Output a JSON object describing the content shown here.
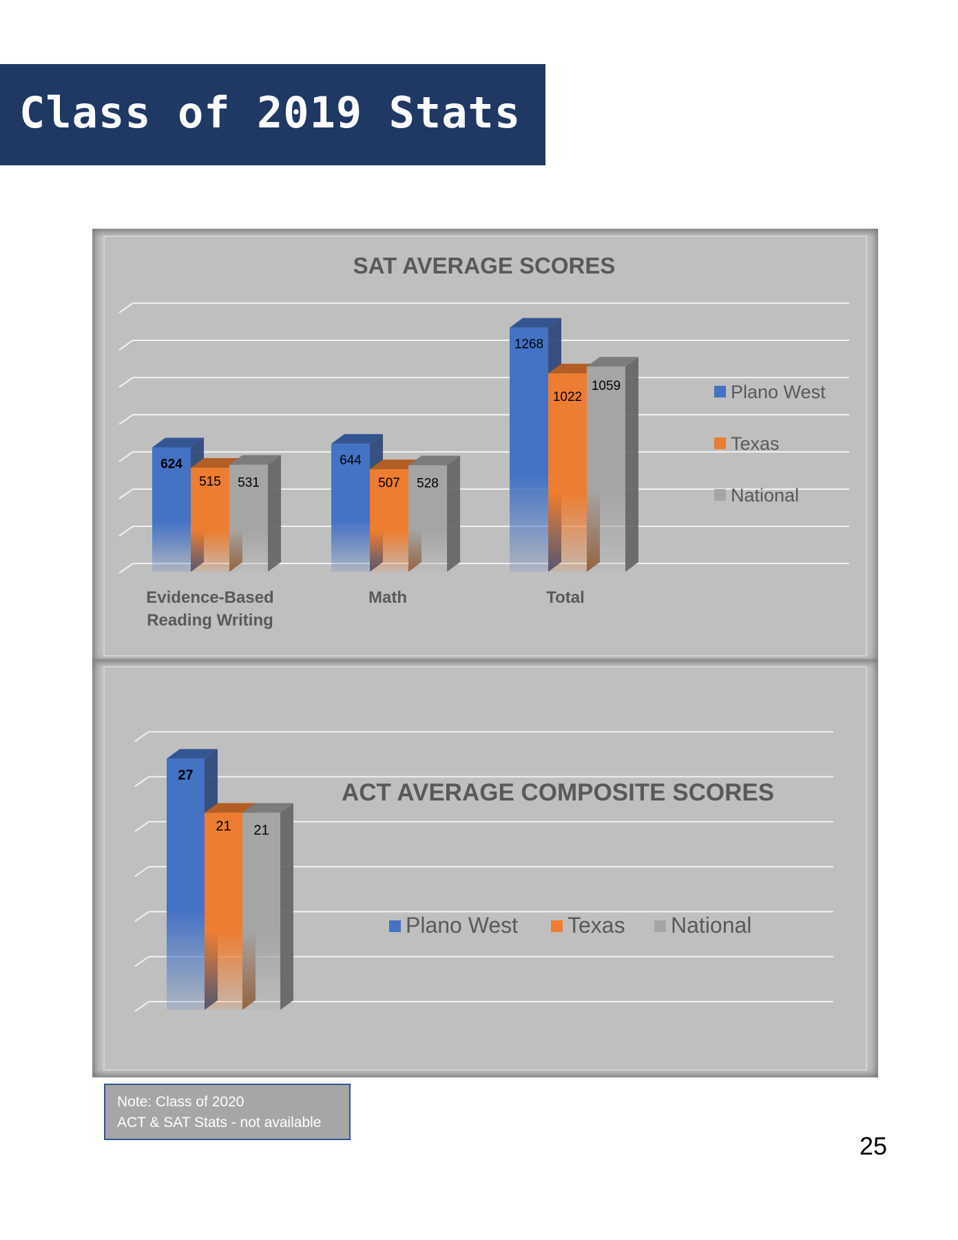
{
  "banner": {
    "title": "Class of 2019 Stats",
    "color": "#1f3864"
  },
  "chart_data": [
    {
      "type": "bar",
      "title": "SAT AVERAGE SCORES",
      "categories": [
        "Evidence-Based Reading Writing",
        "Math",
        "Total"
      ],
      "category_lines": [
        [
          "Evidence-Based",
          "Reading Writing"
        ],
        [
          "Math"
        ],
        [
          "Total"
        ]
      ],
      "series": [
        {
          "name": "Plano West",
          "values": [
            624,
            644,
            1268
          ],
          "color": "#4472c4"
        },
        {
          "name": "Texas",
          "values": [
            515,
            507,
            1022
          ],
          "color": "#ed7d31"
        },
        {
          "name": "National",
          "values": [
            531,
            528,
            1059
          ],
          "color": "#a5a5a5"
        }
      ],
      "ylim": [
        0,
        1400
      ],
      "grid": true,
      "legend": "right",
      "style": "3d-column"
    },
    {
      "type": "bar",
      "title": "ACT AVERAGE COMPOSITE SCORES",
      "categories": [
        ""
      ],
      "series": [
        {
          "name": "Plano West",
          "values": [
            27
          ],
          "color": "#4472c4"
        },
        {
          "name": "Texas",
          "values": [
            21
          ],
          "color": "#ed7d31"
        },
        {
          "name": "National",
          "values": [
            21
          ],
          "color": "#a5a5a5"
        }
      ],
      "ylim": [
        0,
        30
      ],
      "grid": true,
      "legend": "center",
      "style": "3d-column"
    }
  ],
  "note": {
    "line1": "Note: Class of 2020",
    "line2": "ACT & SAT Stats - not available"
  },
  "page_number": "25"
}
